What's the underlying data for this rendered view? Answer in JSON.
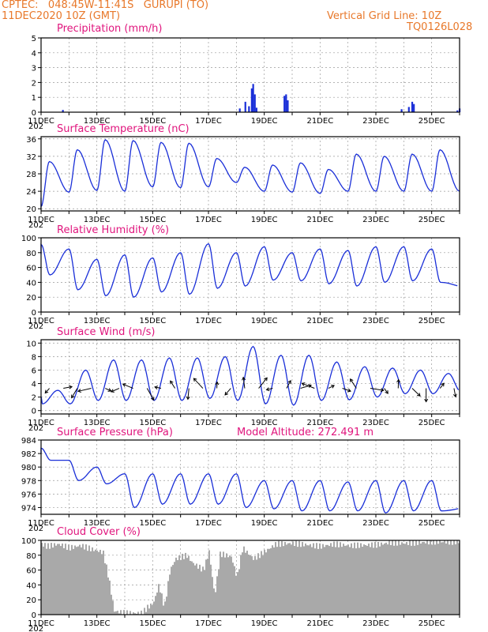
{
  "header": {
    "line1": "CPTEC:   048:45W-11:41S   GURUPI (TO)",
    "line2": "11DEC2020 10Z (GMT)",
    "grid_note": "Vertical Grid Line: 10Z",
    "code": "TQ0126L028",
    "cut_year": "202",
    "color": "#e8782a"
  },
  "colors": {
    "title": "#e0157d",
    "series": "#1a2fd8",
    "cloud": "#a9a9a9"
  },
  "chart_data": [
    {
      "id": "precip",
      "type": "bar",
      "title": "Precipitation (mm/h)",
      "x_tick_labels": [
        "11DEC",
        "13DEC",
        "15DEC",
        "17DEC",
        "19DEC",
        "21DEC",
        "23DEC",
        "25DEC"
      ],
      "ylim": [
        0,
        5
      ],
      "y_ticks": [
        0,
        1,
        2,
        3,
        4,
        5
      ],
      "grid": true,
      "events": [
        {
          "x": 0.78,
          "y": 0.15
        },
        {
          "x": 7.12,
          "y": 0.25
        },
        {
          "x": 7.32,
          "y": 0.7
        },
        {
          "x": 7.45,
          "y": 0.4
        },
        {
          "x": 7.55,
          "y": 1.6
        },
        {
          "x": 7.6,
          "y": 1.9
        },
        {
          "x": 7.66,
          "y": 1.2
        },
        {
          "x": 7.72,
          "y": 0.3
        },
        {
          "x": 8.72,
          "y": 1.1
        },
        {
          "x": 8.78,
          "y": 1.2
        },
        {
          "x": 8.84,
          "y": 0.8
        },
        {
          "x": 12.92,
          "y": 0.2
        },
        {
          "x": 13.18,
          "y": 0.35
        },
        {
          "x": 13.3,
          "y": 0.7
        },
        {
          "x": 13.36,
          "y": 0.55
        },
        {
          "x": 14.92,
          "y": 0.12
        },
        {
          "x": 15.0,
          "y": 0.25
        }
      ]
    },
    {
      "id": "temp",
      "type": "line",
      "title": "Surface Temperature (nC)",
      "x_tick_labels": [
        "11DEC",
        "13DEC",
        "15DEC",
        "17DEC",
        "19DEC",
        "21DEC",
        "23DEC",
        "25DEC"
      ],
      "ylim": [
        19.5,
        36.5
      ],
      "y_ticks": [
        20,
        24,
        28,
        32,
        36
      ],
      "grid": true,
      "mins": [
        20.5,
        23.8,
        24.2,
        24.0,
        25.0,
        24.8,
        25.0,
        26.0,
        24.0,
        23.8,
        23.5,
        24.0,
        24.0,
        24.0,
        24.0,
        24.0
      ],
      "maxs": [
        30.8,
        33.5,
        35.8,
        35.6,
        35.2,
        35.0,
        31.5,
        29.5,
        30.0,
        30.5,
        29.0,
        32.5,
        32.0,
        32.5,
        33.5
      ]
    },
    {
      "id": "rh",
      "type": "line",
      "title": "Relative Humidity (%)",
      "x_tick_labels": [
        "11DEC",
        "13DEC",
        "15DEC",
        "17DEC",
        "19DEC",
        "21DEC",
        "23DEC",
        "25DEC"
      ],
      "ylim": [
        0,
        100
      ],
      "y_ticks": [
        0,
        20,
        40,
        60,
        80,
        100
      ],
      "grid": true,
      "maxs": [
        91,
        85,
        71,
        77,
        73,
        80,
        92,
        80,
        88,
        80,
        85,
        83,
        88,
        88,
        85
      ],
      "mins": [
        50,
        30,
        22,
        20,
        27,
        24,
        32,
        35,
        43,
        42,
        38,
        35,
        40,
        42,
        40,
        33
      ]
    },
    {
      "id": "wind",
      "type": "line",
      "title": "Surface Wind (m/s)",
      "x_tick_labels": [
        "11DEC",
        "13DEC",
        "15DEC",
        "17DEC",
        "19DEC",
        "21DEC",
        "23DEC",
        "25DEC"
      ],
      "ylim": [
        -0.5,
        10.5
      ],
      "y_ticks": [
        0,
        2,
        4,
        6,
        8,
        10
      ],
      "grid": true,
      "maxs": [
        3.0,
        6.0,
        7.5,
        7.5,
        7.8,
        7.8,
        8.0,
        9.5,
        8.2,
        8.2,
        7.2,
        6.5,
        6.3,
        6.0,
        5.5
      ],
      "mins": [
        1.0,
        1.0,
        1.5,
        1.5,
        1.5,
        1.5,
        1.8,
        1.5,
        1.0,
        0.8,
        1.5,
        1.6,
        2.0,
        2.5,
        2.5,
        2.8
      ]
    },
    {
      "id": "pres",
      "type": "line",
      "title": "Surface Pressure (hPa)",
      "annotation": "Model Altitude: 272.491 m",
      "x_tick_labels": [
        "11DEC",
        "13DEC",
        "15DEC",
        "17DEC",
        "19DEC",
        "21DEC",
        "23DEC",
        "25DEC"
      ],
      "ylim": [
        973,
        984
      ],
      "y_ticks": [
        974,
        976,
        978,
        980,
        982,
        984
      ],
      "grid": true,
      "maxs": [
        982.8,
        981.0,
        980.0,
        979.0,
        979.0,
        979.0,
        979.0,
        979.0,
        978.0,
        978.0,
        978.0,
        977.8,
        978.0,
        978.0,
        978.0
      ],
      "mins": [
        981.0,
        978.0,
        977.5,
        974.0,
        974.5,
        974.5,
        974.5,
        974.0,
        973.8,
        973.5,
        973.5,
        973.5,
        973.2,
        973.5,
        973.5,
        974.0
      ]
    },
    {
      "id": "cloud",
      "type": "bar",
      "title": "Cloud Cover (%)",
      "x_tick_labels": [
        "11DEC",
        "13DEC",
        "15DEC",
        "17DEC",
        "19DEC",
        "21DEC",
        "23DEC",
        "25DEC"
      ],
      "ylim": [
        0,
        100
      ],
      "y_ticks": [
        0,
        20,
        40,
        60,
        80,
        100
      ],
      "grid": true,
      "profile": [
        [
          0.0,
          95
        ],
        [
          0.2,
          92
        ],
        [
          0.6,
          95
        ],
        [
          1.0,
          90
        ],
        [
          1.4,
          93
        ],
        [
          1.8,
          88
        ],
        [
          2.2,
          84
        ],
        [
          2.4,
          50
        ],
        [
          2.6,
          5
        ],
        [
          3.0,
          2
        ],
        [
          3.6,
          2
        ],
        [
          3.8,
          10
        ],
        [
          4.0,
          15
        ],
        [
          4.2,
          40
        ],
        [
          4.4,
          10
        ],
        [
          4.6,
          60
        ],
        [
          4.8,
          75
        ],
        [
          5.2,
          80
        ],
        [
          5.4,
          70
        ],
        [
          5.8,
          60
        ],
        [
          6.0,
          85
        ],
        [
          6.2,
          25
        ],
        [
          6.4,
          82
        ],
        [
          6.8,
          78
        ],
        [
          7.0,
          50
        ],
        [
          7.2,
          90
        ],
        [
          7.6,
          75
        ],
        [
          8.0,
          85
        ],
        [
          8.4,
          95
        ],
        [
          9.0,
          96
        ],
        [
          10.0,
          92
        ],
        [
          10.5,
          95
        ],
        [
          11.0,
          93
        ],
        [
          12.0,
          94
        ],
        [
          12.5,
          97
        ],
        [
          13.0,
          96
        ],
        [
          14.0,
          98
        ],
        [
          15.0,
          98
        ]
      ]
    }
  ]
}
